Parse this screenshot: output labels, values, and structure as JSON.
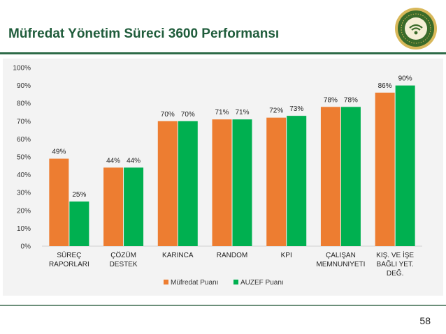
{
  "slide": {
    "title": "Müfredat Yönetim Süreci 3600 Performansı",
    "page_number": "58"
  },
  "colors": {
    "title": "#1f5c3b",
    "rule": "#2e6b48",
    "series_1": "#ed7d31",
    "series_2": "#00b050",
    "logo_green": "#3a6b2a",
    "logo_gold": "#d8b85a"
  },
  "logo": {
    "icon": "university-seal-icon"
  },
  "chart_data": {
    "type": "bar",
    "categories": [
      [
        "SÜREÇ",
        "RAPORLARI"
      ],
      [
        "ÇÖZÜM",
        "DESTEK"
      ],
      [
        "KARINCA"
      ],
      [
        "RANDOM"
      ],
      [
        "KPI"
      ],
      [
        "ÇALIŞAN",
        "MEMNUNIYETI"
      ],
      [
        "KIŞ. VE İŞE",
        "BAĞLI YET.",
        "DEĞ."
      ]
    ],
    "series": [
      {
        "name": "Müfredat Puanı",
        "values": [
          49,
          44,
          70,
          71,
          72,
          78,
          86
        ],
        "labels": [
          "49%",
          "44%",
          "70%",
          "71%",
          "72%",
          "78%",
          "86%"
        ]
      },
      {
        "name": "AUZEF Puanı",
        "values": [
          25,
          44,
          70,
          71,
          73,
          78,
          90
        ],
        "labels": [
          "25%",
          "44%",
          "70%",
          "71%",
          "73%",
          "78%",
          "90%"
        ]
      }
    ],
    "ylim": [
      0,
      100
    ],
    "yticks": [
      "0%",
      "10%",
      "20%",
      "30%",
      "40%",
      "50%",
      "60%",
      "70%",
      "80%",
      "90%",
      "100%"
    ],
    "xlabel": "",
    "ylabel": "",
    "grid": false,
    "legend": "bottom-center"
  }
}
